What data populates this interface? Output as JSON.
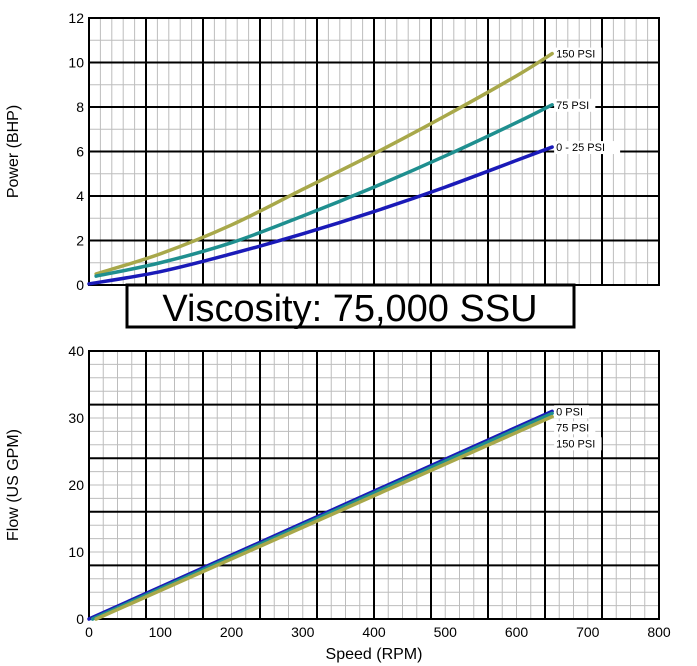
{
  "colors": {
    "gold": "#a8a84a",
    "teal": "#1f8f8f",
    "blue": "#1a1ab8",
    "grid_minor": "#bdbdbd",
    "grid_major": "#000000"
  },
  "viscosity_label": "Viscosity: 75,000 SSU",
  "chart_data": [
    {
      "type": "line",
      "ylabel": "Power (BHP)",
      "xlabel": "",
      "xlim": [
        0,
        800
      ],
      "ylim": [
        0,
        12
      ],
      "y_ticks": [
        "0",
        "2",
        "4",
        "6",
        "8",
        "10",
        "12"
      ],
      "grid": true,
      "series": [
        {
          "name": "150 PSI",
          "color": "#a8a84a",
          "x": [
            10,
            100,
            200,
            300,
            400,
            500,
            600,
            650
          ],
          "y": [
            0.5,
            1.4,
            2.7,
            4.3,
            5.9,
            7.6,
            9.4,
            10.4
          ]
        },
        {
          "name": "75 PSI",
          "color": "#1f8f8f",
          "x": [
            10,
            100,
            200,
            300,
            400,
            500,
            600,
            650
          ],
          "y": [
            0.4,
            1.0,
            1.9,
            3.1,
            4.4,
            5.8,
            7.3,
            8.1
          ]
        },
        {
          "name": "0 - 25 PSI",
          "color": "#1a1ab8",
          "x": [
            0,
            100,
            200,
            300,
            400,
            500,
            600,
            650
          ],
          "y": [
            0.05,
            0.6,
            1.4,
            2.3,
            3.3,
            4.4,
            5.6,
            6.2
          ]
        }
      ]
    },
    {
      "type": "line",
      "ylabel": "Flow (US GPM)",
      "xlabel": "Speed (RPM)",
      "xlim": [
        0,
        800
      ],
      "ylim": [
        0,
        40
      ],
      "x_ticks": [
        "0",
        "100",
        "200",
        "300",
        "400",
        "500",
        "600",
        "700",
        "800"
      ],
      "y_ticks": [
        "0",
        "10",
        "20",
        "30",
        "40"
      ],
      "grid": true,
      "series": [
        {
          "name": "0 PSI",
          "color": "#1a1ab8",
          "x": [
            0,
            650
          ],
          "y": [
            0,
            31
          ]
        },
        {
          "name": "75 PSI",
          "color": "#1f8f8f",
          "x": [
            5,
            650
          ],
          "y": [
            0,
            30.7
          ]
        },
        {
          "name": "150 PSI",
          "color": "#a8a84a",
          "x": [
            10,
            650
          ],
          "y": [
            0,
            30.2
          ]
        }
      ]
    }
  ]
}
